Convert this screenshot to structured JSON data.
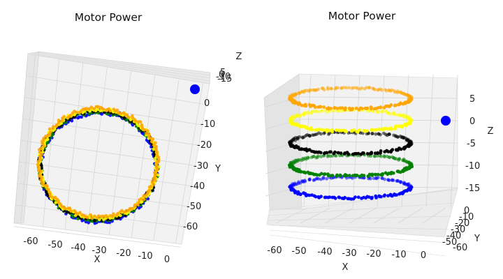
{
  "chart_data": [
    {
      "type": "scatter",
      "projection": "3d",
      "view": "top-down",
      "title": "Motor Power",
      "xlabel": "X",
      "ylabel": "Y",
      "zlabel": "Z",
      "x_ticks": [
        "-60",
        "-50",
        "-40",
        "-30",
        "-20",
        "-10",
        "0"
      ],
      "y_ticks": [
        "0",
        "-10",
        "-20",
        "-30",
        "-40",
        "-50",
        "-60"
      ],
      "z_ticks": [
        "5",
        "0",
        "-10",
        "-15"
      ],
      "xlim": [
        -65,
        2
      ],
      "ylim": [
        -65,
        5
      ],
      "zlim": [
        -17,
        8
      ],
      "series": [
        {
          "color": "#0000ff",
          "z": -15,
          "center": [
            -30,
            -30
          ],
          "radius": 25
        },
        {
          "color": "#008000",
          "z": -10,
          "center": [
            -30,
            -30
          ],
          "radius": 25
        },
        {
          "color": "#000000",
          "z": -5,
          "center": [
            -30,
            -30
          ],
          "radius": 25
        },
        {
          "color": "#ffff00",
          "z": 0,
          "center": [
            -30,
            -30
          ],
          "radius": 25
        },
        {
          "color": "#ffa500",
          "z": 5,
          "center": [
            -30,
            -30
          ],
          "radius": 25
        }
      ],
      "marker": {
        "color": "#0000ff",
        "x": 0,
        "y": 0,
        "z": 0
      }
    },
    {
      "type": "scatter",
      "projection": "3d",
      "view": "side",
      "title": "Motor Power",
      "xlabel": "X",
      "ylabel": "Y",
      "zlabel": "Z",
      "x_ticks": [
        "-60",
        "-50",
        "-40",
        "-30",
        "-20",
        "-10",
        "0"
      ],
      "y_ticks": [
        "0",
        "-10",
        "-20",
        "-30",
        "-40",
        "-50",
        "-60"
      ],
      "z_ticks": [
        "5",
        "0",
        "-5",
        "-10",
        "-15"
      ],
      "xlim": [
        -65,
        2
      ],
      "ylim": [
        -65,
        5
      ],
      "zlim": [
        -17,
        8
      ],
      "series": [
        {
          "color": "#0000ff",
          "z": -15,
          "center": [
            -30,
            -30
          ],
          "radius": 25
        },
        {
          "color": "#008000",
          "z": -10,
          "center": [
            -30,
            -30
          ],
          "radius": 25
        },
        {
          "color": "#000000",
          "z": -5,
          "center": [
            -30,
            -30
          ],
          "radius": 25
        },
        {
          "color": "#ffff00",
          "z": 0,
          "center": [
            -30,
            -30
          ],
          "radius": 25
        },
        {
          "color": "#ffa500",
          "z": 5,
          "center": [
            -30,
            -30
          ],
          "radius": 25
        }
      ],
      "marker": {
        "color": "#0000ff",
        "x": 0,
        "y": 0,
        "z": 0
      }
    }
  ]
}
